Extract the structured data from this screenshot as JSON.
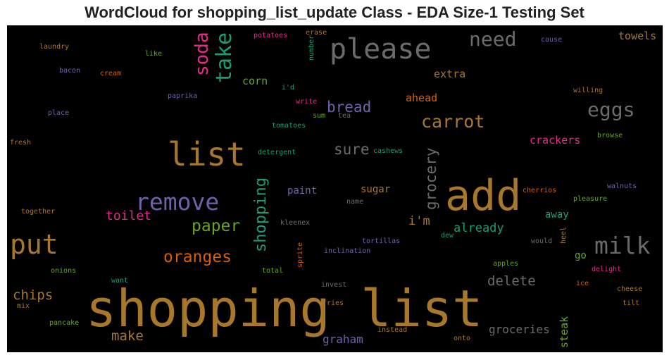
{
  "title": "WordCloud for shopping_list_update Class - EDA Size-1 Testing Set",
  "chart_data": {
    "type": "wordcloud",
    "title": "WordCloud for shopping_list_update Class - EDA Size-1 Testing Set",
    "background": "#000000",
    "words": [
      {
        "text": "shopping list",
        "weight": 100,
        "color": "#a8782a",
        "vertical": false
      },
      {
        "text": "add",
        "weight": 84,
        "color": "#a8782a",
        "vertical": false
      },
      {
        "text": "list",
        "weight": 56,
        "color": "#a8782a",
        "vertical": false
      },
      {
        "text": "please",
        "weight": 52,
        "color": "#6b6b6b",
        "vertical": false
      },
      {
        "text": "put",
        "weight": 50,
        "color": "#a8782a",
        "vertical": false
      },
      {
        "text": "milk",
        "weight": 43,
        "color": "#6b6b6b",
        "vertical": false
      },
      {
        "text": "remove",
        "weight": 42,
        "color": "#6f62a8",
        "vertical": false
      },
      {
        "text": "take",
        "weight": 40,
        "color": "#1b9e77",
        "vertical": true
      },
      {
        "text": "need",
        "weight": 34,
        "color": "#6b6b6b",
        "vertical": false
      },
      {
        "text": "eggs",
        "weight": 33,
        "color": "#6b6b6b",
        "vertical": false
      },
      {
        "text": "soda",
        "weight": 32,
        "color": "#e7298a",
        "vertical": true
      },
      {
        "text": "carrot",
        "weight": 30,
        "color": "#a8782a",
        "vertical": false
      },
      {
        "text": "paper",
        "weight": 28,
        "color": "#66a61e",
        "vertical": false
      },
      {
        "text": "shopping",
        "weight": 27,
        "color": "#1b9e77",
        "vertical": true
      },
      {
        "text": "oranges",
        "weight": 27,
        "color": "#d95f02",
        "vertical": false
      },
      {
        "text": "grocery",
        "weight": 26,
        "color": "#6b6b6b",
        "vertical": true
      },
      {
        "text": "sure",
        "weight": 23,
        "color": "#6b6b6b",
        "vertical": false
      },
      {
        "text": "bread",
        "weight": 23,
        "color": "#6f62a8",
        "vertical": false
      },
      {
        "text": "delete",
        "weight": 22,
        "color": "#6b6b6b",
        "vertical": false
      },
      {
        "text": "make",
        "weight": 22,
        "color": "#a8782a",
        "vertical": false
      },
      {
        "text": "chips",
        "weight": 22,
        "color": "#a8782a",
        "vertical": false
      },
      {
        "text": "toilet",
        "weight": 21,
        "color": "#e7298a",
        "vertical": false
      },
      {
        "text": "already",
        "weight": 19,
        "color": "#1b9e77",
        "vertical": false
      },
      {
        "text": "i'm",
        "weight": 19,
        "color": "#a8782a",
        "vertical": false
      },
      {
        "text": "groceries",
        "weight": 18,
        "color": "#6b6b6b",
        "vertical": false
      },
      {
        "text": "graham",
        "weight": 18,
        "color": "#6f62a8",
        "vertical": false
      },
      {
        "text": "steak",
        "weight": 17,
        "color": "#66a61e",
        "vertical": true
      },
      {
        "text": "towels",
        "weight": 17,
        "color": "#a8782a",
        "vertical": false
      },
      {
        "text": "ahead",
        "weight": 17,
        "color": "#d95f02",
        "vertical": false
      },
      {
        "text": "crackers",
        "weight": 16,
        "color": "#e7298a",
        "vertical": false
      },
      {
        "text": "extra",
        "weight": 16,
        "color": "#a8782a",
        "vertical": false
      },
      {
        "text": "corn",
        "weight": 16,
        "color": "#66a61e",
        "vertical": false
      },
      {
        "text": "sugar",
        "weight": 15,
        "color": "#a8782a",
        "vertical": false
      },
      {
        "text": "paint",
        "weight": 15,
        "color": "#6f62a8",
        "vertical": false
      },
      {
        "text": "away",
        "weight": 15,
        "color": "#1b9e77",
        "vertical": false
      },
      {
        "text": "go",
        "weight": 15,
        "color": "#66a61e",
        "vertical": false
      },
      {
        "text": "cashews",
        "weight": 11,
        "color": "#1b9e77",
        "vertical": false
      },
      {
        "text": "detergent",
        "weight": 11,
        "color": "#1b9e77",
        "vertical": false
      },
      {
        "text": "tortillas",
        "weight": 11,
        "color": "#6f62a8",
        "vertical": false
      },
      {
        "text": "inclination",
        "weight": 11,
        "color": "#6f62a8",
        "vertical": false
      },
      {
        "text": "apples",
        "weight": 11,
        "color": "#66a61e",
        "vertical": false
      },
      {
        "text": "instead",
        "weight": 11,
        "color": "#a8782a",
        "vertical": false
      },
      {
        "text": "fresh",
        "weight": 10,
        "color": "#a8782a",
        "vertical": false
      },
      {
        "text": "laundry",
        "weight": 10,
        "color": "#a8782a",
        "vertical": false
      },
      {
        "text": "bacon",
        "weight": 10,
        "color": "#6f62a8",
        "vertical": false
      },
      {
        "text": "cream",
        "weight": 10,
        "color": "#d95f02",
        "vertical": false
      },
      {
        "text": "paprika",
        "weight": 10,
        "color": "#6f62a8",
        "vertical": false
      },
      {
        "text": "place",
        "weight": 10,
        "color": "#6f62a8",
        "vertical": false
      },
      {
        "text": "like",
        "weight": 10,
        "color": "#66a61e",
        "vertical": false
      },
      {
        "text": "potatoes",
        "weight": 10,
        "color": "#e7298a",
        "vertical": false
      },
      {
        "text": "erase",
        "weight": 10,
        "color": "#a8782a",
        "vertical": false
      },
      {
        "text": "number",
        "weight": 10,
        "color": "#1b9e77",
        "vertical": true
      },
      {
        "text": "i'd",
        "weight": 10,
        "color": "#1b9e77",
        "vertical": false
      },
      {
        "text": "write",
        "weight": 10,
        "color": "#e7298a",
        "vertical": false
      },
      {
        "text": "sum",
        "weight": 10,
        "color": "#66a61e",
        "vertical": false
      },
      {
        "text": "tea",
        "weight": 10,
        "color": "#6b6b6b",
        "vertical": false
      },
      {
        "text": "tomatoes",
        "weight": 10,
        "color": "#1b9e77",
        "vertical": false
      },
      {
        "text": "cause",
        "weight": 10,
        "color": "#6f62a8",
        "vertical": false
      },
      {
        "text": "willing",
        "weight": 10,
        "color": "#a8782a",
        "vertical": false
      },
      {
        "text": "browse",
        "weight": 10,
        "color": "#66a61e",
        "vertical": false
      },
      {
        "text": "cherrios",
        "weight": 10,
        "color": "#d95f02",
        "vertical": false
      },
      {
        "text": "walnuts",
        "weight": 10,
        "color": "#6f62a8",
        "vertical": false
      },
      {
        "text": "pleasure",
        "weight": 10,
        "color": "#66a61e",
        "vertical": false
      },
      {
        "text": "name",
        "weight": 10,
        "color": "#6b6b6b",
        "vertical": false
      },
      {
        "text": "kleenex",
        "weight": 10,
        "color": "#6b6b6b",
        "vertical": false
      },
      {
        "text": "dew",
        "weight": 10,
        "color": "#1b9e77",
        "vertical": false
      },
      {
        "text": "would",
        "weight": 10,
        "color": "#6b6b6b",
        "vertical": false
      },
      {
        "text": "heel",
        "weight": 10,
        "color": "#a8782a",
        "vertical": true
      },
      {
        "text": "together",
        "weight": 10,
        "color": "#a8782a",
        "vertical": false
      },
      {
        "text": "onions",
        "weight": 10,
        "color": "#66a61e",
        "vertical": false
      },
      {
        "text": "want",
        "weight": 10,
        "color": "#1b9e77",
        "vertical": false
      },
      {
        "text": "total",
        "weight": 10,
        "color": "#66a61e",
        "vertical": false
      },
      {
        "text": "sprite",
        "weight": 10,
        "color": "#d95f02",
        "vertical": true
      },
      {
        "text": "invest",
        "weight": 10,
        "color": "#6b6b6b",
        "vertical": false
      },
      {
        "text": "fries",
        "weight": 10,
        "color": "#a8782a",
        "vertical": false
      },
      {
        "text": "mix",
        "weight": 10,
        "color": "#a8782a",
        "vertical": false
      },
      {
        "text": "pancake",
        "weight": 10,
        "color": "#66a61e",
        "vertical": false
      },
      {
        "text": "onto",
        "weight": 10,
        "color": "#a8782a",
        "vertical": false
      },
      {
        "text": "delight",
        "weight": 10,
        "color": "#e7298a",
        "vertical": false
      },
      {
        "text": "ice",
        "weight": 10,
        "color": "#d95f02",
        "vertical": false
      },
      {
        "text": "cheese",
        "weight": 10,
        "color": "#a8782a",
        "vertical": false
      },
      {
        "text": "tilt",
        "weight": 10,
        "color": "#a8782a",
        "vertical": false
      }
    ]
  }
}
